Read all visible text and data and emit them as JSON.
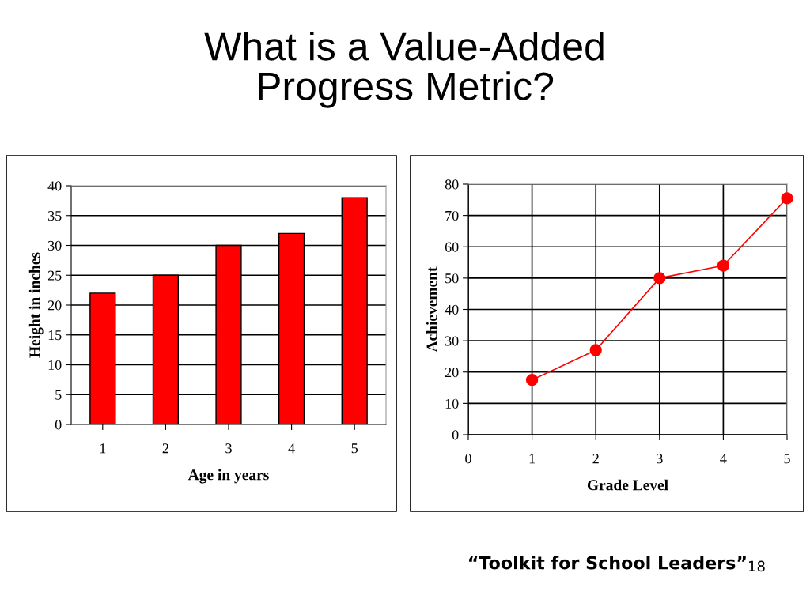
{
  "chart_data": [
    {
      "type": "bar",
      "title": "What is a Value-Added\nProgress Metric?",
      "categories": [
        "1",
        "2",
        "3",
        "4",
        "5"
      ],
      "values": [
        22,
        25,
        30,
        32,
        38
      ],
      "color": "#ff0000",
      "xlabel": "Age in years",
      "ylabel": "Height in inches",
      "ylim": [
        0,
        40
      ],
      "yticks": [
        0,
        5,
        10,
        15,
        20,
        25,
        30,
        35,
        40
      ],
      "grid": "y"
    },
    {
      "type": "line",
      "x": [
        1,
        2,
        3,
        4,
        5
      ],
      "values": [
        17.5,
        27,
        50,
        54,
        75.5
      ],
      "color": "#ff0000",
      "marker": "circle",
      "line_style": "solid",
      "xlabel": "Grade Level",
      "ylabel": "Achievement",
      "xlim": [
        0,
        5
      ],
      "xticks": [
        0,
        1,
        2,
        3,
        4,
        5
      ],
      "ylim": [
        0,
        80
      ],
      "yticks": [
        0,
        10,
        20,
        30,
        40,
        50,
        60,
        70,
        80
      ],
      "grid": true,
      "annotations": [
        "“Toolkit for School Leaders”",
        "18"
      ]
    }
  ]
}
